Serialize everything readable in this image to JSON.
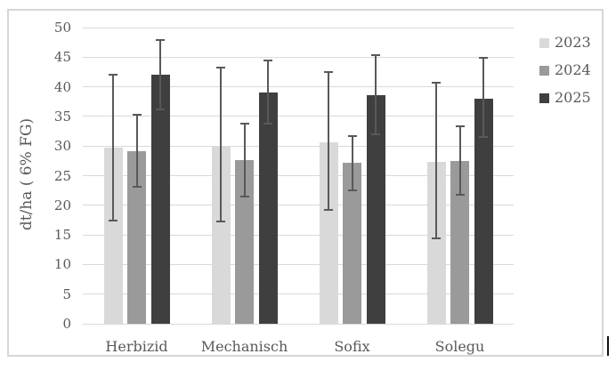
{
  "chart_data": {
    "type": "bar",
    "title": "",
    "categories": [
      "Herbizid",
      "Mechanisch",
      "Sofix",
      "Solegu"
    ],
    "series": [
      {
        "name": "2023",
        "color": "#d9d9d9",
        "values": [
          29.7,
          29.9,
          30.6,
          27.4
        ],
        "error_low": [
          17.2,
          17.1,
          19.1,
          14.2
        ],
        "error_high": [
          42.2,
          43.4,
          42.6,
          40.8
        ]
      },
      {
        "name": "2024",
        "color": "#9a9a9a",
        "values": [
          29.2,
          27.6,
          27.2,
          27.5
        ],
        "error_low": [
          22.9,
          21.3,
          22.3,
          21.6
        ],
        "error_high": [
          35.5,
          33.9,
          31.8,
          33.5
        ]
      },
      {
        "name": "2025",
        "color": "#3f3f3f",
        "values": [
          42.0,
          39.0,
          38.6,
          38.0
        ],
        "error_low": [
          36.1,
          33.6,
          31.8,
          31.4
        ],
        "error_high": [
          48.0,
          44.6,
          45.5,
          45.0
        ]
      }
    ],
    "xlabel": "",
    "ylabel": "dt/ha ( 6% FG)",
    "ylim": [
      0,
      50
    ],
    "yticks": [
      0,
      5,
      10,
      15,
      20,
      25,
      30,
      35,
      40,
      45,
      50
    ],
    "grid": true,
    "legend_position": "right",
    "error_bars": true
  },
  "colors": {
    "grid": "#d9d9d9",
    "text": "#595959",
    "error_bar": "#595959",
    "frame_border": "#d6d6d6",
    "background": "#ffffff"
  }
}
